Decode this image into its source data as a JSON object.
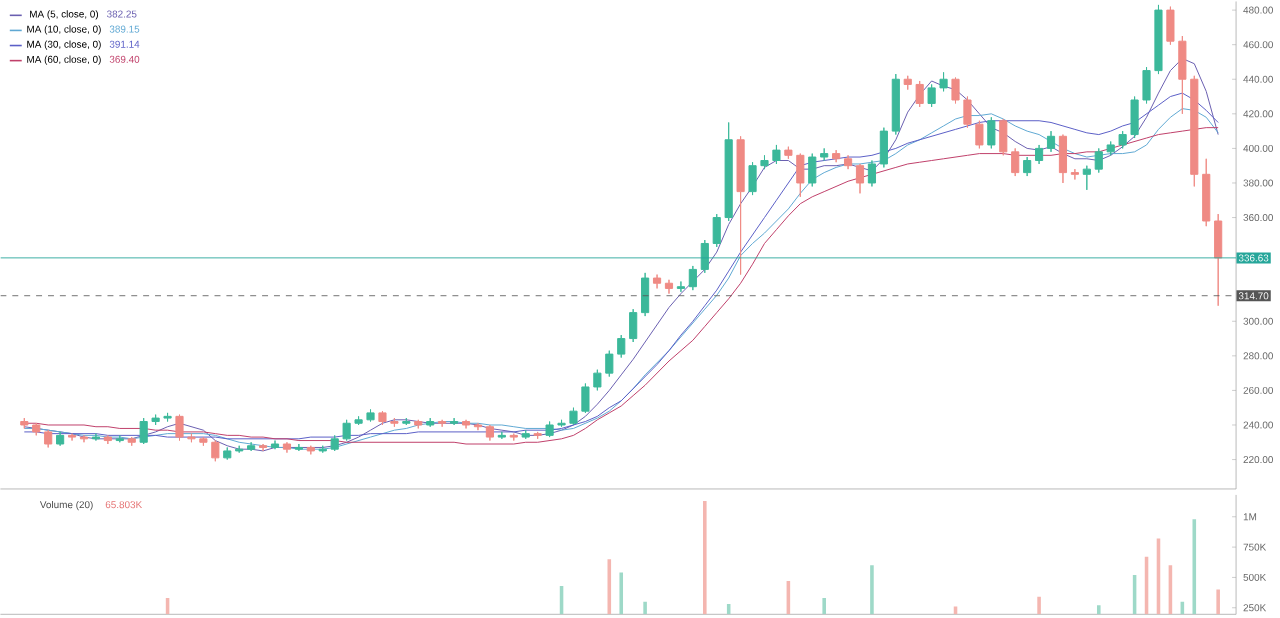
{
  "chart_data": [
    {
      "type": "candlestick",
      "categories": [
        null,
        null,
        null,
        null,
        null,
        null,
        null,
        null,
        null,
        null,
        null,
        null,
        null,
        null,
        null,
        null,
        null,
        null,
        null,
        null,
        null,
        null,
        null,
        null,
        null,
        null,
        null,
        null,
        null,
        null,
        null,
        null,
        null,
        null,
        null,
        null,
        null,
        null,
        null,
        null,
        null,
        null,
        null,
        null,
        null,
        null,
        null,
        null,
        null,
        null,
        null,
        null,
        null,
        null,
        null,
        null,
        null,
        null,
        null,
        null,
        null,
        null,
        null,
        null,
        null,
        null,
        null,
        null,
        null,
        null,
        null,
        null,
        null,
        null,
        null,
        null,
        null,
        null,
        null,
        null,
        null,
        null,
        null,
        null,
        null,
        null,
        null,
        null,
        null,
        null,
        null,
        null,
        null,
        null,
        null,
        null,
        null,
        null,
        null,
        null,
        null
      ],
      "ohlc": [
        [
          242,
          244,
          238,
          240
        ],
        [
          240,
          241,
          234,
          236
        ],
        [
          236,
          237,
          227,
          229
        ],
        [
          229,
          236,
          228,
          234
        ],
        [
          234,
          235,
          231,
          233
        ],
        [
          233,
          234,
          230,
          232
        ],
        [
          232,
          235,
          231,
          233
        ],
        [
          233,
          234,
          229,
          231
        ],
        [
          231,
          234,
          230,
          232
        ],
        [
          232,
          233,
          228,
          230
        ],
        [
          230,
          244,
          229,
          242
        ],
        [
          242,
          246,
          240,
          244
        ],
        [
          244,
          247,
          242,
          245
        ],
        [
          245,
          246,
          231,
          233
        ],
        [
          233,
          235,
          230,
          232
        ],
        [
          232,
          233,
          228,
          230
        ],
        [
          230,
          231,
          219,
          221
        ],
        [
          221,
          227,
          220,
          225
        ],
        [
          225,
          228,
          224,
          226
        ],
        [
          226,
          230,
          225,
          228
        ],
        [
          228,
          229,
          225,
          227
        ],
        [
          227,
          231,
          226,
          229
        ],
        [
          229,
          230,
          224,
          226
        ],
        [
          226,
          229,
          225,
          227
        ],
        [
          227,
          228,
          223,
          225
        ],
        [
          225,
          228,
          224,
          226
        ],
        [
          226,
          234,
          225,
          232
        ],
        [
          232,
          243,
          231,
          241
        ],
        [
          241,
          245,
          240,
          243
        ],
        [
          243,
          249,
          242,
          247
        ],
        [
          247,
          248,
          240,
          242
        ],
        [
          242,
          244,
          239,
          241
        ],
        [
          241,
          244,
          240,
          242
        ],
        [
          242,
          243,
          238,
          240
        ],
        [
          240,
          244,
          239,
          242
        ],
        [
          242,
          243,
          239,
          241
        ],
        [
          241,
          244,
          240,
          242
        ],
        [
          242,
          243,
          238,
          240
        ],
        [
          240,
          241,
          237,
          239
        ],
        [
          239,
          240,
          231,
          233
        ],
        [
          233,
          236,
          232,
          234
        ],
        [
          234,
          235,
          231,
          233
        ],
        [
          233,
          237,
          232,
          235
        ],
        [
          235,
          236,
          232,
          234
        ],
        [
          234,
          242,
          233,
          240
        ],
        [
          240,
          243,
          239,
          241
        ],
        [
          241,
          250,
          240,
          248
        ],
        [
          248,
          264,
          247,
          262
        ],
        [
          262,
          272,
          260,
          270
        ],
        [
          270,
          283,
          268,
          281
        ],
        [
          281,
          292,
          279,
          290
        ],
        [
          290,
          307,
          288,
          305
        ],
        [
          305,
          328,
          303,
          325
        ],
        [
          325,
          327,
          319,
          322
        ],
        [
          322,
          324,
          316,
          319
        ],
        [
          319,
          323,
          317,
          320
        ],
        [
          320,
          332,
          318,
          330
        ],
        [
          330,
          347,
          328,
          345
        ],
        [
          345,
          362,
          343,
          360
        ],
        [
          360,
          415,
          358,
          405
        ],
        [
          405,
          407,
          327,
          375
        ],
        [
          375,
          392,
          373,
          390
        ],
        [
          390,
          396,
          388,
          393
        ],
        [
          393,
          402,
          391,
          399
        ],
        [
          399,
          401,
          394,
          396
        ],
        [
          396,
          397,
          372,
          380
        ],
        [
          380,
          397,
          378,
          395
        ],
        [
          395,
          400,
          393,
          397
        ],
        [
          397,
          399,
          392,
          394
        ],
        [
          394,
          396,
          388,
          390
        ],
        [
          390,
          391,
          374,
          380
        ],
        [
          380,
          393,
          378,
          391
        ],
        [
          391,
          412,
          389,
          410
        ],
        [
          410,
          443,
          408,
          440
        ],
        [
          440,
          442,
          434,
          437
        ],
        [
          437,
          439,
          424,
          426
        ],
        [
          426,
          437,
          424,
          435
        ],
        [
          435,
          444,
          433,
          440
        ],
        [
          440,
          441,
          426,
          428
        ],
        [
          428,
          430,
          412,
          414
        ],
        [
          414,
          416,
          400,
          402
        ],
        [
          402,
          418,
          400,
          416
        ],
        [
          416,
          417,
          396,
          398
        ],
        [
          398,
          400,
          384,
          386
        ],
        [
          386,
          395,
          384,
          393
        ],
        [
          393,
          402,
          391,
          400
        ],
        [
          400,
          410,
          398,
          407
        ],
        [
          407,
          408,
          380,
          386
        ],
        [
          386,
          388,
          382,
          385
        ],
        [
          385,
          390,
          376,
          388
        ],
        [
          388,
          400,
          386,
          398
        ],
        [
          398,
          404,
          396,
          402
        ],
        [
          402,
          410,
          400,
          408
        ],
        [
          408,
          430,
          406,
          428
        ],
        [
          428,
          447,
          426,
          445
        ],
        [
          445,
          483,
          443,
          480
        ],
        [
          480,
          482,
          460,
          462
        ],
        [
          462,
          465,
          420,
          440
        ],
        [
          440,
          442,
          378,
          385
        ],
        [
          385,
          394,
          355,
          358
        ],
        [
          358,
          362,
          309,
          336.63
        ]
      ],
      "series": [
        {
          "type": "line",
          "name": "MA (5, close, 0)",
          "color": "#6a5fb0",
          "values": [
            239,
            238,
            237,
            236,
            235,
            233,
            232,
            232,
            232,
            232,
            234,
            236,
            239,
            241,
            239,
            237,
            231,
            228,
            226,
            226,
            225,
            227,
            227,
            227,
            227,
            227,
            228,
            230,
            233,
            237,
            241,
            243,
            243,
            242,
            241,
            241,
            241,
            241,
            240,
            238,
            237,
            236,
            234,
            234,
            235,
            237,
            240,
            245,
            252,
            260,
            269,
            278,
            288,
            298,
            308,
            316,
            323,
            330,
            340,
            356,
            368,
            378,
            389,
            393,
            393,
            388,
            388,
            390,
            390,
            391,
            389,
            387,
            394,
            405,
            421,
            431,
            439,
            436,
            434,
            428,
            420,
            412,
            409,
            404,
            400,
            399,
            401,
            397,
            394,
            394,
            393,
            396,
            401,
            407,
            418,
            432,
            445,
            452,
            449,
            433,
            408
          ]
        },
        {
          "type": "line",
          "name": "MA (10, close, 0)",
          "color": "#5fa8d3",
          "values": [
            238,
            238,
            237,
            236,
            235,
            234,
            234,
            233,
            233,
            232,
            233,
            234,
            235,
            235,
            235,
            235,
            234,
            232,
            230,
            229,
            228,
            227,
            227,
            226,
            226,
            226,
            227,
            229,
            231,
            233,
            235,
            237,
            238,
            240,
            241,
            242,
            242,
            241,
            241,
            240,
            240,
            239,
            238,
            238,
            238,
            237,
            238,
            241,
            244,
            248,
            254,
            261,
            269,
            276,
            283,
            291,
            299,
            307,
            315,
            325,
            338,
            345,
            351,
            358,
            365,
            374,
            382,
            386,
            389,
            391,
            391,
            392,
            393,
            397,
            402,
            405,
            409,
            413,
            417,
            419,
            419,
            420,
            417,
            413,
            410,
            408,
            404,
            400,
            397,
            395,
            396,
            397,
            397,
            398,
            402,
            411,
            418,
            423,
            422,
            418,
            409
          ]
        },
        {
          "type": "line",
          "name": "MA (30, close, 0)",
          "color": "#5b5fc7",
          "values": [
            236,
            236,
            235,
            235,
            235,
            235,
            235,
            234,
            234,
            234,
            234,
            234,
            233,
            233,
            233,
            233,
            233,
            232,
            232,
            232,
            232,
            232,
            232,
            232,
            233,
            233,
            233,
            234,
            234,
            235,
            235,
            235,
            235,
            236,
            236,
            236,
            236,
            236,
            236,
            236,
            236,
            236,
            237,
            237,
            237,
            238,
            240,
            242,
            245,
            250,
            254,
            261,
            268,
            275,
            283,
            292,
            300,
            309,
            318,
            329,
            340,
            350,
            360,
            370,
            380,
            390,
            392,
            393,
            394,
            395,
            395,
            396,
            398,
            400,
            403,
            405,
            407,
            409,
            411,
            413,
            415,
            416,
            416,
            416,
            416,
            416,
            415,
            413,
            411,
            409,
            408,
            410,
            413,
            415,
            420,
            425,
            430,
            432,
            428,
            422,
            415
          ]
        },
        {
          "type": "line",
          "name": "MA (60, close, 0)",
          "color": "#c0406a",
          "values": [
            241,
            241,
            240,
            240,
            240,
            240,
            239,
            239,
            238,
            238,
            238,
            237,
            237,
            236,
            236,
            236,
            235,
            234,
            234,
            233,
            233,
            232,
            232,
            231,
            231,
            231,
            231,
            230,
            230,
            230,
            230,
            230,
            230,
            230,
            230,
            230,
            230,
            229,
            229,
            229,
            229,
            229,
            230,
            230,
            231,
            232,
            234,
            238,
            243,
            247,
            251,
            257,
            263,
            270,
            277,
            283,
            289,
            297,
            305,
            313,
            322,
            333,
            345,
            353,
            361,
            368,
            372,
            375,
            378,
            381,
            383,
            385,
            387,
            389,
            391,
            392,
            393,
            394,
            395,
            396,
            397,
            397,
            397,
            396,
            396,
            396,
            396,
            397,
            397,
            398,
            398,
            400,
            402,
            404,
            406,
            408,
            409,
            410,
            411,
            412,
            412
          ]
        }
      ],
      "annotations": [
        "382.25",
        "389.15",
        "391.14",
        "369.40"
      ],
      "legend": "top left",
      "ylim": [
        203,
        485
      ],
      "yticks": [
        {
          "value": 220,
          "label": "220.00"
        },
        {
          "value": 240,
          "label": "240.00"
        },
        {
          "value": 260,
          "label": "260.00"
        },
        {
          "value": 280,
          "label": "280.00"
        },
        {
          "value": 300,
          "label": "300.00"
        },
        {
          "value": 360,
          "label": "360.00"
        },
        {
          "value": 380,
          "label": "380.00"
        },
        {
          "value": 400,
          "label": "400.00"
        },
        {
          "value": 420,
          "label": "420.00"
        },
        {
          "value": 440,
          "label": "440.00"
        },
        {
          "value": 460,
          "label": "460.00"
        },
        {
          "value": 480,
          "label": "480.00"
        }
      ],
      "ref_lines": [
        {
          "axis": "y",
          "value": 336.63,
          "label": "336.63",
          "color": "#26a69a",
          "line_style": "solid"
        },
        {
          "axis": "y",
          "value": 314.7,
          "label": "314.70",
          "color": "#555555",
          "line_style": "dashed"
        }
      ],
      "tick_labels": "y"
    },
    {
      "type": "bar",
      "title": "Volume (20)",
      "categories": [
        null,
        null,
        null,
        null,
        null,
        null,
        null,
        null,
        null,
        null,
        null,
        null,
        null,
        null,
        null,
        null,
        null,
        null,
        null,
        null,
        null,
        null,
        null,
        null,
        null,
        null,
        null,
        null,
        null,
        null,
        null,
        null,
        null,
        null,
        null,
        null,
        null,
        null,
        null,
        null,
        null,
        null,
        null,
        null,
        null,
        null,
        null,
        null,
        null,
        null,
        null,
        null,
        null,
        null,
        null,
        null,
        null,
        null,
        null,
        null,
        null,
        null,
        null,
        null,
        null,
        null,
        null,
        null,
        null,
        null,
        null,
        null,
        null,
        null,
        null,
        null,
        null,
        null,
        null,
        null,
        null,
        null,
        null,
        null,
        null,
        null,
        null,
        null,
        null,
        null,
        null,
        null,
        null,
        null,
        null,
        null,
        null,
        null,
        null,
        null,
        null
      ],
      "values": [
        null,
        null,
        null,
        null,
        null,
        null,
        null,
        null,
        null,
        null,
        null,
        null,
        330000,
        null,
        null,
        null,
        null,
        null,
        null,
        null,
        null,
        null,
        null,
        null,
        null,
        null,
        null,
        null,
        null,
        null,
        null,
        null,
        null,
        null,
        null,
        null,
        null,
        null,
        null,
        null,
        null,
        null,
        null,
        null,
        null,
        430000,
        null,
        null,
        null,
        650000,
        540000,
        null,
        300000,
        null,
        null,
        null,
        null,
        1130000,
        null,
        280000,
        null,
        null,
        null,
        null,
        470000,
        null,
        null,
        330000,
        null,
        null,
        null,
        600000,
        null,
        null,
        null,
        null,
        null,
        null,
        260000,
        null,
        null,
        null,
        null,
        null,
        null,
        340000,
        null,
        null,
        null,
        null,
        270000,
        null,
        null,
        520000,
        670000,
        820000,
        600000,
        300000,
        980000,
        null,
        400000
      ],
      "colors": [
        null,
        null,
        null,
        null,
        null,
        null,
        null,
        null,
        null,
        null,
        null,
        null,
        "#f4b6b0",
        null,
        null,
        null,
        null,
        null,
        null,
        null,
        null,
        null,
        null,
        null,
        null,
        null,
        null,
        null,
        null,
        null,
        null,
        null,
        null,
        null,
        null,
        null,
        null,
        null,
        null,
        null,
        null,
        null,
        null,
        null,
        null,
        "#9ed9c8",
        null,
        null,
        null,
        "#f4b6b0",
        "#9ed9c8",
        null,
        "#9ed9c8",
        null,
        null,
        null,
        null,
        "#f4b6b0",
        null,
        "#9ed9c8",
        null,
        null,
        null,
        null,
        "#f4b6b0",
        null,
        null,
        "#9ed9c8",
        null,
        null,
        null,
        "#9ed9c8",
        null,
        null,
        null,
        null,
        null,
        null,
        "#f4b6b0",
        null,
        null,
        null,
        null,
        null,
        null,
        "#f4b6b0",
        null,
        null,
        null,
        null,
        "#9ed9c8",
        null,
        null,
        "#9ed9c8",
        "#f4b6b0",
        "#f4b6b0",
        "#f4b6b0",
        "#9ed9c8",
        "#9ed9c8",
        null,
        "#f4b6b0"
      ],
      "annotations": [
        "65.803K"
      ],
      "ylim": [
        196000,
        1180000
      ],
      "yticks": [
        {
          "value": 250000,
          "label": "250K"
        },
        {
          "value": 500000,
          "label": "500K"
        },
        {
          "value": 750000,
          "label": "750K"
        },
        {
          "value": 1000000,
          "label": "1M"
        }
      ],
      "tick_labels": "y"
    }
  ]
}
